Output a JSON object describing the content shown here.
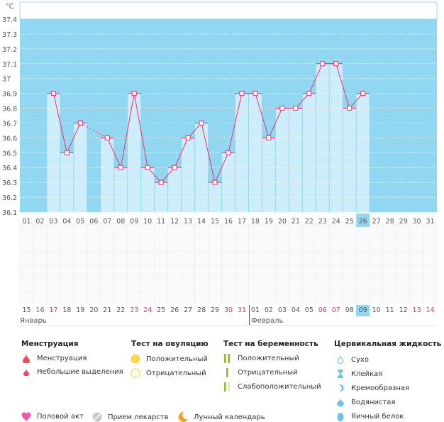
{
  "chart_data": {
    "type": "line",
    "unit_label": "°C",
    "ylim": [
      36.1,
      37.4
    ],
    "yticks": [
      "36.1",
      "36.2",
      "36.3",
      "36.4",
      "36.5",
      "36.6",
      "36.7",
      "36.8",
      "36.9",
      "37",
      "37.1",
      "37.2",
      "37.3",
      "37.4"
    ],
    "x": [
      "01",
      "02",
      "03",
      "04",
      "05",
      "06",
      "07",
      "08",
      "09",
      "10",
      "11",
      "12",
      "13",
      "14",
      "15",
      "16",
      "17",
      "18",
      "19",
      "20",
      "21",
      "22",
      "23",
      "24",
      "25",
      "26",
      "27",
      "28",
      "29",
      "30",
      "31"
    ],
    "values": [
      null,
      null,
      36.9,
      36.5,
      36.7,
      null,
      36.6,
      36.4,
      36.9,
      36.4,
      36.3,
      36.4,
      36.6,
      36.7,
      36.3,
      36.5,
      36.9,
      36.9,
      36.6,
      36.8,
      36.8,
      36.9,
      37.1,
      37.1,
      36.8,
      36.9,
      null,
      null,
      null,
      null,
      null
    ],
    "current_day": "26",
    "colors": {
      "bg": "#92d7f2",
      "bar": "#cdedfb",
      "line": "#f0306a"
    }
  },
  "dates": {
    "days": [
      "15",
      "16",
      "17",
      "18",
      "19",
      "20",
      "21",
      "22",
      "23",
      "24",
      "25",
      "26",
      "27",
      "28",
      "29",
      "30",
      "31",
      "01",
      "02",
      "03",
      "04",
      "05",
      "06",
      "07",
      "08",
      "09",
      "10",
      "11",
      "12",
      "13",
      "14"
    ],
    "red": [
      1,
      2,
      8,
      9,
      15,
      16,
      22,
      23,
      29,
      30
    ],
    "current": 25,
    "month1": "Январь",
    "month2": "Февраль"
  },
  "legend": {
    "menstruation": {
      "title": "Менструация",
      "items": [
        "Менструация",
        "Небольшие выделения"
      ]
    },
    "ovulation": {
      "title": "Тест на овуляцию",
      "items": [
        "Положительный",
        "Отрицательный"
      ]
    },
    "pregnancy": {
      "title": "Тест на беременность",
      "items": [
        "Положительный",
        "Отрицательный",
        "Слабоположительный"
      ]
    },
    "cervical": {
      "title": "Цервикальная жидкость",
      "items": [
        "Сухо",
        "Клейкая",
        "Кремообразная",
        "Водянистая",
        "Яичный белок"
      ]
    },
    "bottom": [
      "Половой акт",
      "Прием лекарств",
      "Лунный календарь"
    ]
  }
}
